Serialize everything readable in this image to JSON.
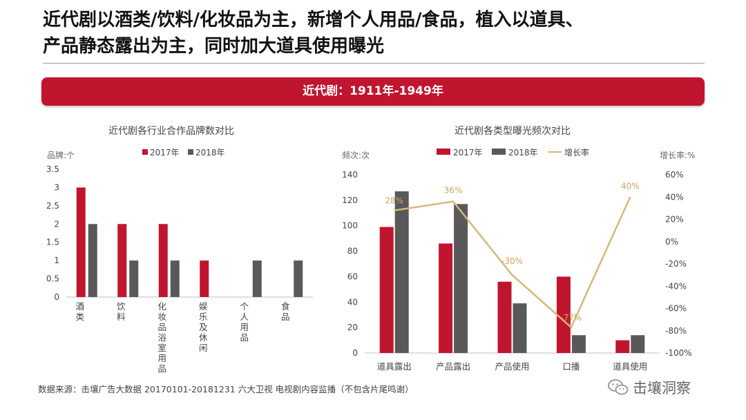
{
  "slide": {
    "title": "近代剧以酒类/饮料/化妆品为主，新增个人用品/食品，植入以道具、\n产品静态露出为主，同时加大道具使用曝光",
    "banner": "近代剧：1911年-1949年",
    "source": "数据来源：击壤广告大数据 20170101-20181231 六大卫视 电视剧内容监播（不包含片尾鸣谢）",
    "watermark": "击壤洞察"
  },
  "colors": {
    "s2017": "#c0152f",
    "s2018": "#595959",
    "growth": "#d4b87a",
    "banner": "#c0152f"
  },
  "chart_data": [
    {
      "type": "bar",
      "title": "近代剧各行业合作品牌数对比",
      "ylabel": "品牌:个",
      "ylim": [
        0,
        3.5
      ],
      "yticks": [
        "0",
        "0.5",
        "1",
        "1.5",
        "2",
        "2.5",
        "3",
        "3.5"
      ],
      "categories": [
        "酒类",
        "饮料",
        "化妆品浴室用品",
        "娱乐及休闲",
        "个人用品",
        "食品"
      ],
      "series": [
        {
          "name": "2017年",
          "values": [
            3,
            2,
            2,
            1,
            0,
            0
          ]
        },
        {
          "name": "2018年",
          "values": [
            2,
            1,
            1,
            0,
            1,
            1
          ]
        }
      ],
      "legend": "top"
    },
    {
      "type": "bar",
      "title": "近代剧各类型曝光频次对比",
      "ylabel": "频次:次",
      "y2label": "增长率:%",
      "ylim": [
        0,
        140
      ],
      "y2lim": [
        -100,
        60
      ],
      "yticks": [
        "0",
        "20",
        "40",
        "60",
        "80",
        "100",
        "120",
        "140"
      ],
      "y2ticks": [
        "-100%",
        "-80%",
        "-60%",
        "-40%",
        "-20%",
        "0%",
        "20%",
        "40%",
        "60%"
      ],
      "categories": [
        "道具露出",
        "产品露出",
        "产品使用",
        "口播",
        "道具使用"
      ],
      "series": [
        {
          "name": "2017年",
          "values": [
            99,
            86,
            56,
            60,
            10
          ]
        },
        {
          "name": "2018年",
          "values": [
            127,
            117,
            39,
            14,
            14
          ]
        },
        {
          "name": "增长率",
          "type": "line",
          "axis": "right",
          "values": [
            28,
            36,
            -30,
            -77,
            40
          ],
          "labels": [
            "28%",
            "36%",
            "-30%",
            "-77%",
            "40%"
          ]
        }
      ],
      "legend": "top"
    }
  ]
}
